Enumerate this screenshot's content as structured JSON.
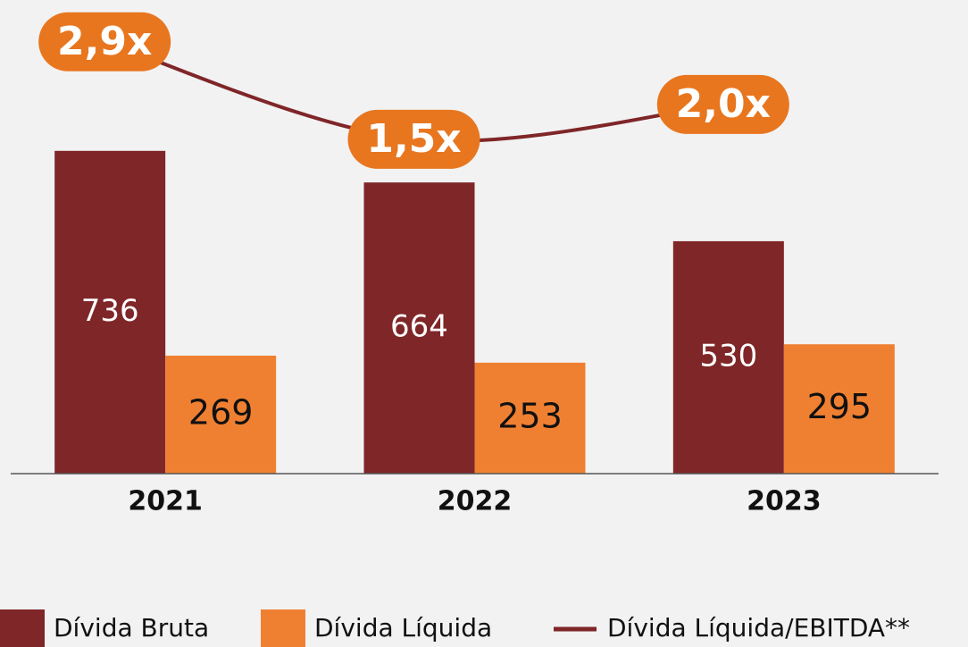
{
  "chart_data": {
    "type": "bar",
    "categories": [
      "2021",
      "2022",
      "2023"
    ],
    "ylim": [
      0,
      1080
    ],
    "y2lim": [
      -3.3,
      3.5
    ],
    "series": [
      {
        "name": "Dívida Bruta",
        "color": "#7f2628",
        "values": [
          736,
          664,
          530
        ]
      },
      {
        "name": "Dívida Líquida",
        "color": "#ef8032",
        "values": [
          269,
          253,
          295
        ]
      },
      {
        "name": "Dívida Líquida/EBITDA**",
        "color": "#7f2628",
        "type": "line",
        "axis": "y2",
        "values": [
          2.9,
          1.5,
          2.0
        ],
        "value_labels": [
          "2,9x",
          "1,5x",
          "2,0x"
        ],
        "label_color": "#e8761f"
      }
    ]
  }
}
